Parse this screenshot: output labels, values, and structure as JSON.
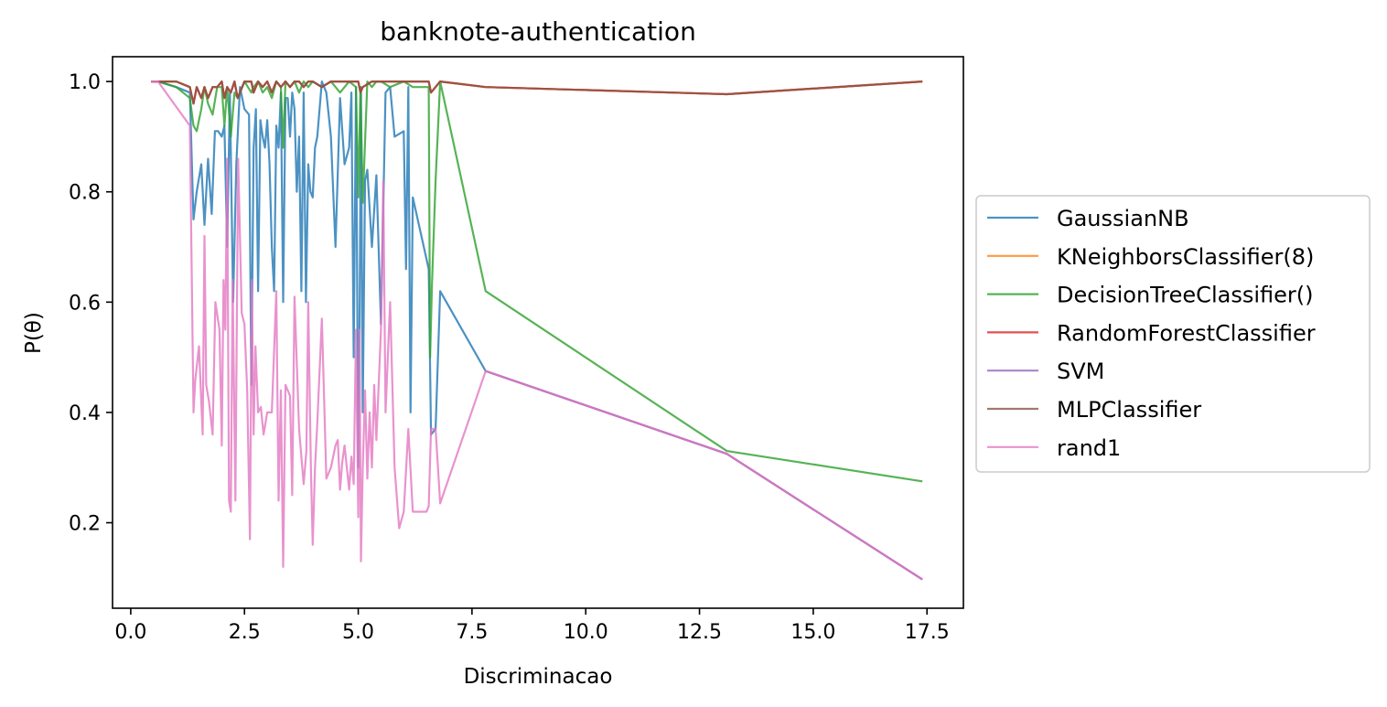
{
  "chart_data": {
    "type": "line",
    "title": "banknote-authentication",
    "xlabel": "Discriminacao",
    "ylabel": "P(θ)",
    "xlim": [
      -0.4,
      18.3
    ],
    "ylim": [
      0.045,
      1.045
    ],
    "xticks": [
      0.0,
      2.5,
      5.0,
      7.5,
      10.0,
      12.5,
      15.0,
      17.5
    ],
    "xtick_labels": [
      "0.0",
      "2.5",
      "5.0",
      "7.5",
      "10.0",
      "12.5",
      "15.0",
      "17.5"
    ],
    "yticks": [
      0.2,
      0.4,
      0.6,
      0.8,
      1.0
    ],
    "ytick_labels": [
      "0.2",
      "0.4",
      "0.6",
      "0.8",
      "1.0"
    ],
    "grid": false,
    "legend_position": "outside-right",
    "series": [
      {
        "name": "GaussianNB",
        "color": "#1f77b4",
        "x": [
          0.45,
          0.6,
          1.0,
          1.3,
          1.38,
          1.45,
          1.55,
          1.62,
          1.7,
          1.78,
          1.85,
          1.92,
          2.0,
          2.06,
          2.12,
          2.18,
          2.25,
          2.32,
          2.4,
          2.5,
          2.6,
          2.65,
          2.7,
          2.75,
          2.8,
          2.85,
          2.9,
          2.95,
          3.0,
          3.05,
          3.1,
          3.15,
          3.2,
          3.25,
          3.3,
          3.35,
          3.4,
          3.45,
          3.5,
          3.55,
          3.6,
          3.65,
          3.7,
          3.75,
          3.8,
          3.85,
          3.9,
          3.95,
          4.0,
          4.05,
          4.1,
          4.2,
          4.3,
          4.4,
          4.5,
          4.6,
          4.7,
          4.8,
          4.85,
          4.9,
          4.95,
          5.0,
          5.03,
          5.06,
          5.1,
          5.15,
          5.2,
          5.3,
          5.4,
          5.5,
          5.6,
          5.7,
          5.8,
          6.0,
          6.05,
          6.1,
          6.15,
          6.2,
          6.55,
          6.6,
          6.7,
          6.8,
          7.8,
          13.1,
          17.4
        ],
        "y": [
          1.0,
          1.0,
          0.99,
          0.98,
          0.75,
          0.8,
          0.85,
          0.74,
          0.86,
          0.76,
          0.91,
          0.91,
          0.9,
          0.92,
          0.7,
          0.98,
          0.6,
          0.85,
          0.99,
          0.95,
          0.94,
          0.45,
          0.88,
          0.95,
          0.62,
          0.93,
          0.9,
          0.88,
          0.93,
          0.85,
          0.7,
          0.62,
          0.92,
          0.88,
          0.98,
          0.6,
          0.97,
          0.97,
          0.9,
          0.98,
          0.95,
          0.8,
          0.9,
          0.62,
          0.98,
          0.6,
          0.85,
          0.8,
          0.79,
          0.88,
          0.9,
          1.0,
          0.98,
          0.9,
          0.7,
          0.97,
          0.85,
          0.88,
          0.98,
          0.5,
          0.99,
          0.3,
          0.55,
          0.99,
          0.4,
          0.82,
          0.84,
          0.7,
          0.83,
          0.56,
          0.98,
          0.99,
          0.9,
          0.91,
          0.66,
          0.99,
          0.4,
          0.79,
          0.66,
          0.36,
          0.37,
          0.62,
          0.475,
          0.325,
          0.097
        ]
      },
      {
        "name": "KNeighborsClassifier(8)",
        "color": "#ff7f0e",
        "x": [
          0.45,
          0.6,
          1.0,
          1.3,
          1.38,
          1.45,
          1.55,
          1.62,
          1.7,
          1.8,
          1.9,
          2.0,
          2.06,
          2.12,
          2.2,
          2.28,
          2.35,
          2.5,
          2.65,
          2.7,
          2.8,
          2.9,
          3.0,
          3.1,
          3.2,
          3.3,
          3.4,
          3.5,
          3.6,
          3.7,
          3.8,
          3.9,
          4.0,
          4.2,
          4.4,
          4.6,
          4.8,
          5.0,
          5.05,
          5.1,
          5.3,
          5.5,
          5.7,
          6.0,
          6.2,
          6.55,
          6.6,
          6.8,
          7.8,
          13.1,
          17.4
        ],
        "y": [
          1.0,
          1.0,
          1.0,
          0.99,
          0.96,
          0.99,
          0.97,
          0.99,
          0.97,
          0.99,
          0.99,
          1.0,
          0.97,
          0.99,
          0.98,
          1.0,
          0.97,
          1.0,
          1.0,
          0.98,
          1.0,
          0.99,
          1.0,
          0.98,
          1.0,
          0.99,
          1.0,
          0.99,
          1.0,
          1.0,
          0.99,
          1.0,
          1.0,
          0.99,
          1.0,
          1.0,
          1.0,
          1.0,
          0.98,
          0.99,
          1.0,
          1.0,
          1.0,
          1.0,
          1.0,
          1.0,
          0.98,
          1.0,
          0.99,
          0.977,
          1.0
        ]
      },
      {
        "name": "DecisionTreeClassifier()",
        "color": "#2ca02c",
        "x": [
          0.45,
          0.6,
          1.0,
          1.3,
          1.38,
          1.45,
          1.55,
          1.62,
          1.7,
          1.8,
          1.9,
          2.0,
          2.06,
          2.12,
          2.2,
          2.28,
          2.35,
          2.5,
          2.65,
          2.7,
          2.8,
          2.9,
          3.0,
          3.1,
          3.2,
          3.3,
          3.35,
          3.4,
          3.5,
          3.6,
          3.7,
          3.8,
          3.9,
          4.0,
          4.2,
          4.4,
          4.6,
          4.8,
          4.95,
          5.0,
          5.05,
          5.1,
          5.2,
          5.3,
          5.4,
          5.5,
          5.7,
          6.0,
          6.2,
          6.55,
          6.58,
          6.62,
          6.7,
          6.8,
          7.8,
          13.1,
          17.4
        ],
        "y": [
          1.0,
          1.0,
          0.99,
          0.97,
          0.92,
          0.91,
          0.95,
          0.99,
          0.96,
          0.94,
          0.99,
          0.99,
          0.92,
          0.99,
          0.9,
          0.98,
          0.97,
          1.0,
          0.98,
          0.99,
          1.0,
          0.98,
          0.99,
          0.97,
          1.0,
          0.99,
          0.88,
          1.0,
          0.99,
          1.0,
          0.98,
          1.0,
          0.99,
          1.0,
          0.99,
          1.0,
          0.98,
          1.0,
          0.99,
          0.79,
          0.99,
          0.78,
          1.0,
          0.99,
          1.0,
          1.0,
          0.99,
          1.0,
          0.99,
          0.99,
          0.5,
          0.63,
          0.82,
          1.0,
          0.62,
          0.33,
          0.275
        ]
      },
      {
        "name": "RandomForestClassifier",
        "color": "#d62728",
        "x": [
          0.45,
          0.6,
          1.0,
          1.3,
          1.38,
          1.45,
          1.55,
          1.62,
          1.7,
          1.8,
          1.9,
          2.0,
          2.06,
          2.12,
          2.2,
          2.28,
          2.35,
          2.5,
          2.65,
          2.7,
          2.8,
          2.9,
          3.0,
          3.1,
          3.2,
          3.3,
          3.4,
          3.5,
          3.6,
          3.7,
          3.8,
          3.9,
          4.0,
          4.2,
          4.4,
          4.6,
          4.8,
          5.0,
          5.05,
          5.1,
          5.3,
          5.5,
          5.7,
          6.0,
          6.2,
          6.55,
          6.6,
          6.8,
          7.8,
          13.1,
          17.4
        ],
        "y": [
          1.0,
          1.0,
          1.0,
          0.99,
          0.96,
          0.99,
          0.97,
          0.99,
          0.97,
          0.99,
          0.99,
          1.0,
          0.97,
          0.99,
          0.98,
          1.0,
          0.97,
          1.0,
          1.0,
          0.98,
          1.0,
          0.99,
          1.0,
          0.98,
          1.0,
          0.99,
          1.0,
          0.99,
          1.0,
          1.0,
          0.99,
          1.0,
          1.0,
          0.99,
          1.0,
          1.0,
          1.0,
          1.0,
          0.98,
          0.99,
          1.0,
          1.0,
          1.0,
          1.0,
          1.0,
          1.0,
          0.98,
          1.0,
          0.99,
          0.977,
          1.0
        ]
      },
      {
        "name": "SVM",
        "color": "#9467bd",
        "x": [
          7.8,
          13.1,
          17.4
        ],
        "y": [
          0.475,
          0.325,
          0.097
        ]
      },
      {
        "name": "MLPClassifier",
        "color": "#8c564b",
        "x": [
          0.45,
          0.6,
          1.0,
          1.3,
          1.38,
          1.45,
          1.55,
          1.62,
          1.7,
          1.8,
          1.9,
          2.0,
          2.06,
          2.12,
          2.2,
          2.28,
          2.35,
          2.5,
          2.65,
          2.7,
          2.8,
          2.9,
          3.0,
          3.1,
          3.2,
          3.3,
          3.4,
          3.5,
          3.6,
          3.7,
          3.8,
          3.9,
          4.0,
          4.2,
          4.4,
          4.6,
          4.8,
          5.0,
          5.05,
          5.1,
          5.3,
          5.5,
          5.7,
          6.0,
          6.2,
          6.55,
          6.6,
          6.8,
          7.8,
          13.1,
          17.4
        ],
        "y": [
          1.0,
          1.0,
          1.0,
          0.99,
          0.96,
          0.99,
          0.97,
          0.99,
          0.97,
          0.99,
          0.99,
          1.0,
          0.97,
          0.99,
          0.98,
          1.0,
          0.97,
          1.0,
          1.0,
          0.98,
          1.0,
          0.99,
          1.0,
          0.98,
          1.0,
          0.99,
          1.0,
          0.99,
          1.0,
          1.0,
          0.99,
          1.0,
          1.0,
          0.99,
          1.0,
          1.0,
          1.0,
          1.0,
          0.98,
          0.99,
          1.0,
          1.0,
          1.0,
          1.0,
          1.0,
          1.0,
          0.98,
          1.0,
          0.99,
          0.977,
          1.0
        ]
      },
      {
        "name": "rand1",
        "color": "#e377c2",
        "x": [
          0.45,
          0.6,
          1.3,
          1.38,
          1.42,
          1.5,
          1.58,
          1.62,
          1.66,
          1.72,
          1.8,
          1.86,
          1.95,
          2.0,
          2.04,
          2.08,
          2.12,
          2.16,
          2.2,
          2.24,
          2.3,
          2.36,
          2.44,
          2.5,
          2.56,
          2.62,
          2.66,
          2.7,
          2.74,
          2.8,
          2.86,
          2.92,
          3.0,
          3.1,
          3.2,
          3.25,
          3.3,
          3.35,
          3.4,
          3.5,
          3.55,
          3.6,
          3.7,
          3.8,
          3.86,
          3.9,
          3.96,
          4.0,
          4.05,
          4.1,
          4.2,
          4.3,
          4.4,
          4.5,
          4.55,
          4.6,
          4.65,
          4.7,
          4.8,
          4.85,
          4.9,
          4.95,
          5.0,
          5.03,
          5.06,
          5.1,
          5.15,
          5.2,
          5.25,
          5.3,
          5.35,
          5.4,
          5.5,
          5.55,
          5.6,
          5.7,
          5.8,
          5.9,
          6.0,
          6.1,
          6.2,
          6.5,
          6.55,
          6.6,
          6.7,
          6.8,
          7.8,
          13.1,
          17.4
        ],
        "y": [
          1.0,
          1.0,
          0.92,
          0.4,
          0.46,
          0.52,
          0.36,
          0.72,
          0.45,
          0.42,
          0.36,
          0.6,
          0.55,
          0.34,
          0.64,
          0.55,
          0.86,
          0.24,
          0.22,
          0.64,
          0.24,
          0.86,
          0.58,
          0.56,
          0.44,
          0.17,
          0.64,
          0.36,
          0.52,
          0.4,
          0.41,
          0.36,
          0.4,
          0.4,
          0.62,
          0.24,
          0.44,
          0.12,
          0.45,
          0.43,
          0.25,
          0.61,
          0.37,
          0.27,
          0.33,
          0.6,
          0.3,
          0.16,
          0.3,
          0.38,
          0.57,
          0.28,
          0.3,
          0.34,
          0.35,
          0.26,
          0.31,
          0.34,
          0.26,
          0.32,
          0.27,
          0.55,
          0.21,
          0.55,
          0.13,
          0.3,
          0.44,
          0.28,
          0.4,
          0.3,
          0.45,
          0.35,
          0.55,
          0.82,
          0.4,
          0.6,
          0.3,
          0.19,
          0.22,
          0.37,
          0.22,
          0.22,
          0.23,
          0.37,
          0.37,
          0.235,
          0.475,
          0.325,
          0.097
        ]
      }
    ]
  }
}
